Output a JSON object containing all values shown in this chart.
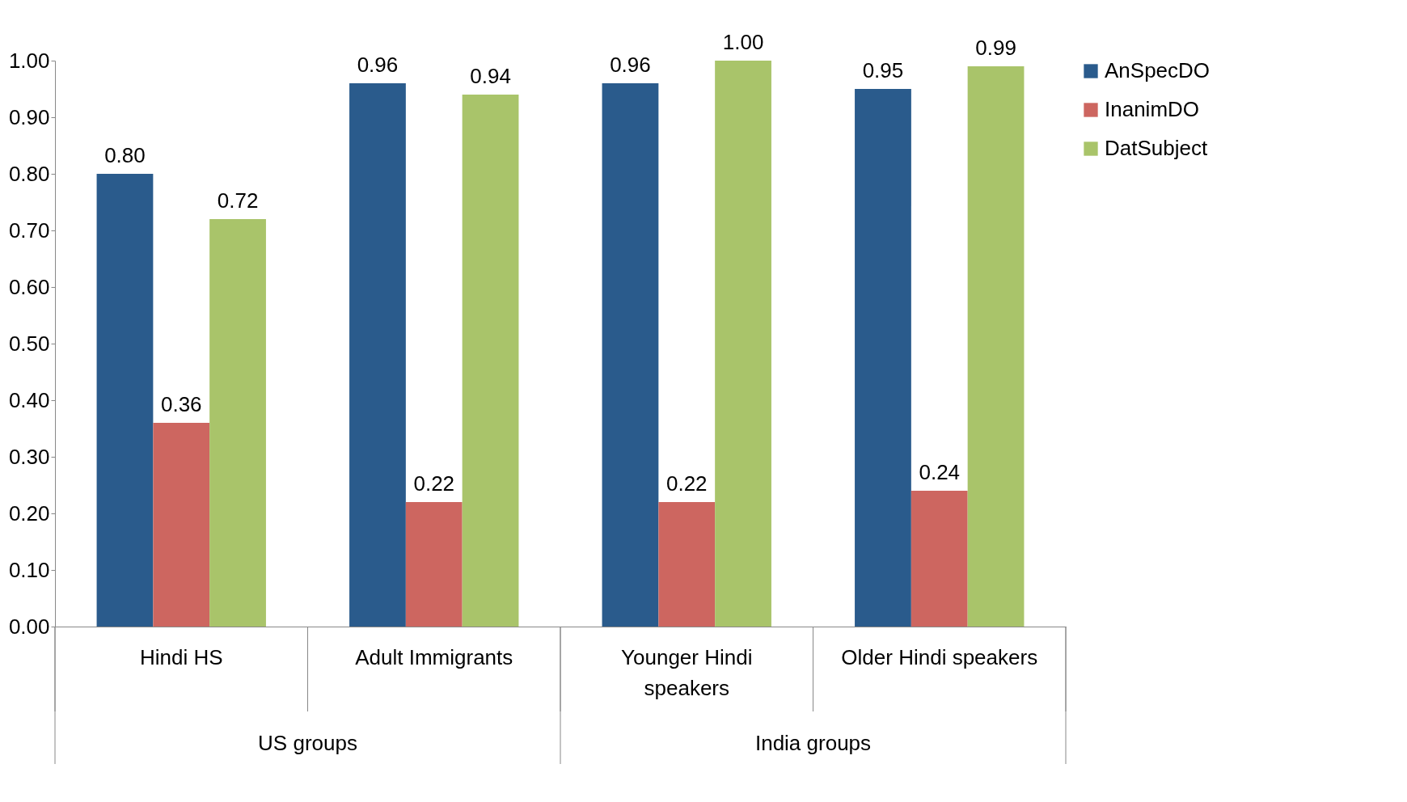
{
  "chart_data": {
    "type": "bar",
    "categories": [
      "Hindi HS",
      "Adult Immigrants",
      "Younger Hindi speakers",
      "Older Hindi speakers"
    ],
    "series": [
      {
        "name": "AnSpecDO",
        "color": "#2a5b8c",
        "values": [
          0.8,
          0.96,
          0.96,
          0.95
        ],
        "value_labels": [
          "0.80",
          "0.96",
          "0.96",
          "0.95"
        ]
      },
      {
        "name": "InanimDO",
        "color": "#cd6660",
        "values": [
          0.36,
          0.22,
          0.22,
          0.24
        ],
        "value_labels": [
          "0.36",
          "0.22",
          "0.22",
          "0.24"
        ]
      },
      {
        "name": "DatSubject",
        "color": "#a9c46a",
        "values": [
          0.72,
          0.94,
          1.0,
          0.99
        ],
        "value_labels": [
          "0.72",
          "0.94",
          "1.00",
          "0.99"
        ]
      }
    ],
    "ylim": [
      0,
      1
    ],
    "yticks": [
      {
        "value": 0,
        "label": "0.00"
      },
      {
        "value": 0.1,
        "label": "0.10"
      },
      {
        "value": 0.2,
        "label": "0.20"
      },
      {
        "value": 0.3,
        "label": "0.30"
      },
      {
        "value": 0.4,
        "label": "0.40"
      },
      {
        "value": 0.5,
        "label": "0.50"
      },
      {
        "value": 0.6,
        "label": "0.60"
      },
      {
        "value": 0.7,
        "label": "0.70"
      },
      {
        "value": 0.8,
        "label": "0.80"
      },
      {
        "value": 0.9,
        "label": "0.90"
      },
      {
        "value": 1,
        "label": "1.00"
      }
    ],
    "annotations": [
      "US groups",
      "India groups"
    ],
    "grid": false,
    "legend": "right"
  }
}
